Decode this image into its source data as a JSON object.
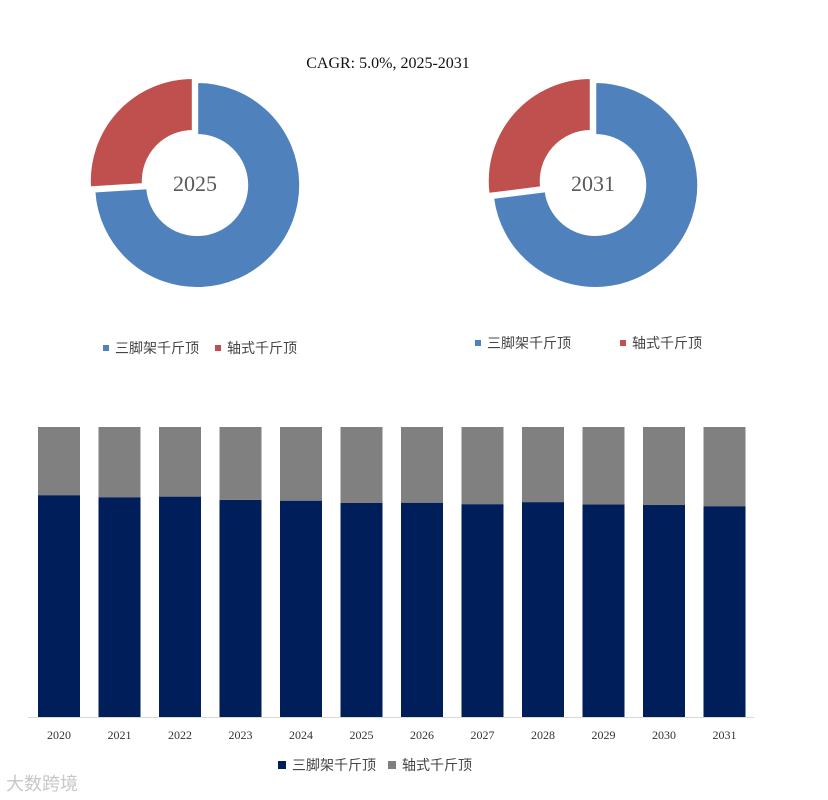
{
  "cagr_text": "CAGR:   5.0%, 2025-2031",
  "watermark": "大数跨境",
  "colors": {
    "tripod": "#4F81BD",
    "axle": "#C0504D",
    "bar_tripod": "#001E5A",
    "bar_axle": "#808080"
  },
  "chart_data": [
    {
      "type": "pie",
      "title": "2025",
      "donut": true,
      "labels": [
        "三脚架千斤顶",
        "轴式千斤顶"
      ],
      "values": [
        74,
        26
      ]
    },
    {
      "type": "pie",
      "title": "2031",
      "donut": true,
      "labels": [
        "三脚架千斤顶",
        "轴式千斤顶"
      ],
      "values": [
        73,
        27
      ]
    },
    {
      "type": "bar",
      "stacked": true,
      "normalized": true,
      "categories": [
        "2020",
        "2021",
        "2022",
        "2023",
        "2024",
        "2025",
        "2026",
        "2027",
        "2028",
        "2029",
        "2030",
        "2031"
      ],
      "series": [
        {
          "name": "三脚架千斤顶",
          "values": [
            76.5,
            75.8,
            76.0,
            74.9,
            74.6,
            73.8,
            73.9,
            73.4,
            74.1,
            73.3,
            73.1,
            72.7
          ]
        },
        {
          "name": "轴式千斤顶",
          "values": [
            23.5,
            24.2,
            24.0,
            25.1,
            25.4,
            26.2,
            26.1,
            26.6,
            25.9,
            26.7,
            26.9,
            27.3
          ]
        }
      ],
      "ylim": [
        0,
        100
      ],
      "legend_position": "bottom"
    }
  ]
}
